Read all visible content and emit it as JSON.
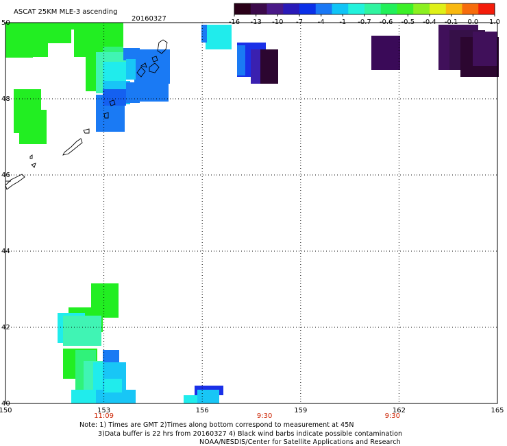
{
  "header": {
    "title": "ASCAT 25KM MLE-3 ascending",
    "date": "20160327"
  },
  "colorbar": {
    "colors": [
      "#2a0018",
      "#3c0a4a",
      "#4a1a88",
      "#2a1ab8",
      "#0a30e8",
      "#1a78f5",
      "#10c4f6",
      "#22f2dc",
      "#30f4a0",
      "#22f05a",
      "#3cf028",
      "#8cf020",
      "#dff018",
      "#f8b810",
      "#f66c0c",
      "#f41c0a"
    ],
    "tick_labels": [
      "-16",
      "-13",
      "-10",
      "-7",
      "-4",
      "-1",
      "-0.7",
      "-0.6",
      "-0.5",
      "-0.4",
      "-0.1",
      "0.0",
      "1.0"
    ]
  },
  "map": {
    "lon_labels": [
      "150",
      "153",
      "156",
      "159",
      "162",
      "165"
    ],
    "lat_labels": [
      "50",
      "48",
      "46",
      "44",
      "42",
      "40"
    ],
    "pass_times": [
      {
        "text": "11:09",
        "lon": 153
      },
      {
        "text": "9:30",
        "lon": 157.9
      },
      {
        "text": "9:30",
        "lon": 161.8
      }
    ]
  },
  "footer": {
    "line1": "Note: 1) Times are GMT 2)Times along bottom correspond to measurement at 45N",
    "line2": "3)Data buffer is 22 hrs from 20160327 4) Black wind barbs indicate possible contamination",
    "line3": "NOAA/NESDIS/Center for Satellite Applications and Research"
  }
}
